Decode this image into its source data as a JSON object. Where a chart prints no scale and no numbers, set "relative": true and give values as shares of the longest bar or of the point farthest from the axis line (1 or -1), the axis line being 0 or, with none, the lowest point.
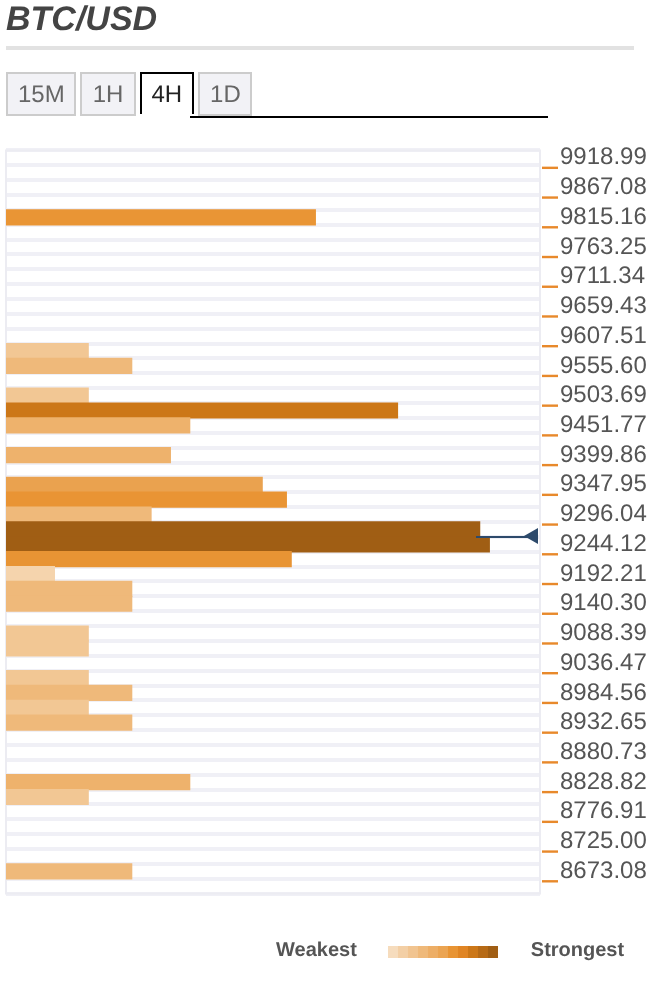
{
  "chart_data": {
    "type": "bar",
    "orientation": "horizontal",
    "relative": true,
    "title": "BTC/USD",
    "categories": [
      "9918.99",
      null,
      "9867.08",
      null,
      "9815.16",
      null,
      "9763.25",
      null,
      "9711.34",
      null,
      "9659.43",
      null,
      "9607.51",
      null,
      "9555.60",
      null,
      "9503.69",
      null,
      "9451.77",
      null,
      "9399.86",
      null,
      "9347.95",
      null,
      "9296.04",
      null,
      "9244.12",
      null,
      "9192.21",
      null,
      "9140.30",
      null,
      "9088.39",
      null,
      "9036.47",
      null,
      "8984.56",
      null,
      "8932.65",
      null,
      "8880.73",
      null,
      "8828.82",
      null,
      "8776.91",
      null,
      "8725.00",
      null,
      "8673.08",
      null
    ],
    "values": [
      null,
      null,
      null,
      null,
      0.64,
      null,
      null,
      null,
      null,
      null,
      null,
      null,
      null,
      0.17,
      0.26,
      null,
      0.17,
      0.81,
      0.38,
      null,
      0.34,
      null,
      0.53,
      0.58,
      0.3,
      0.98,
      1,
      0.59,
      0.1,
      0.26,
      0.26,
      null,
      0.17,
      0.17,
      null,
      0.17,
      0.26,
      0.17,
      0.26,
      null,
      null,
      null,
      0.38,
      0.17,
      null,
      null,
      null,
      null,
      0.26,
      null
    ],
    "colors": [
      null,
      null,
      null,
      null,
      "#e99535",
      null,
      null,
      null,
      null,
      null,
      null,
      null,
      null,
      "#f2c794",
      "#efb97a",
      null,
      "#f2c794",
      "#cc7718",
      "#eeb26c",
      null,
      "#eeb26c",
      null,
      "#eaa24f",
      "#e99434",
      "#efb97a",
      "#a05e14",
      "#a05e14",
      "#e89434",
      "#f5d4ad",
      "#efb97a",
      "#efb97a",
      null,
      "#f2c794",
      "#f2c794",
      null,
      "#f2c794",
      "#efb97a",
      "#f2c794",
      "#efb97a",
      null,
      null,
      null,
      "#eeb26c",
      "#f2c794",
      null,
      null,
      null,
      null,
      "#efb97a",
      null
    ],
    "grid": "y",
    "legend": false,
    "annotations": [
      "15M",
      "1H",
      "4H",
      "1D",
      "Weakest",
      "Strongest"
    ]
  }
}
